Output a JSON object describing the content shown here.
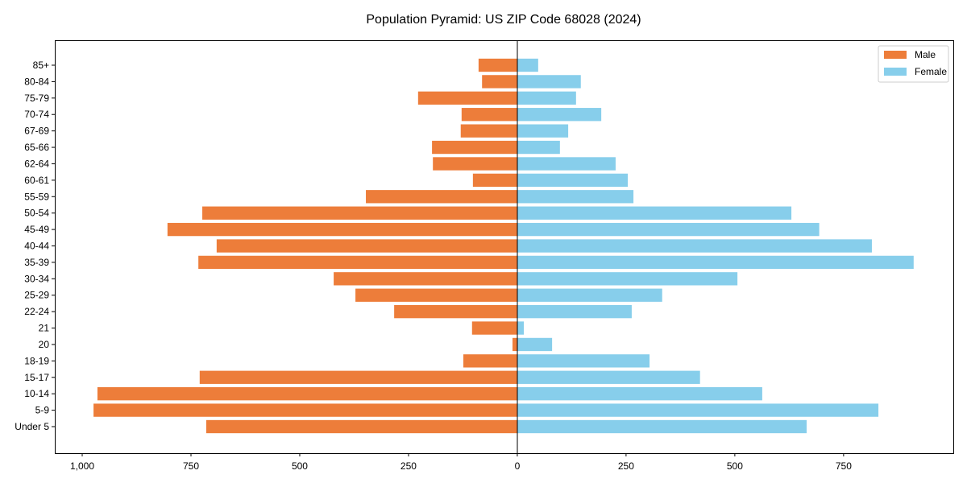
{
  "chart_data": {
    "type": "bar",
    "orientation": "horizontal",
    "title": "Population Pyramid: US ZIP Code 68028 (2024)",
    "xlabel": "",
    "ylabel": "",
    "categories": [
      "Under 5",
      "5-9",
      "10-14",
      "15-17",
      "18-19",
      "20",
      "21",
      "22-24",
      "25-29",
      "30-34",
      "35-39",
      "40-44",
      "45-49",
      "50-54",
      "55-59",
      "60-61",
      "62-64",
      "65-66",
      "67-69",
      "70-74",
      "75-79",
      "80-84",
      "85+"
    ],
    "series": [
      {
        "name": "Male",
        "color": "#ED7D3A",
        "direction": "left",
        "values": [
          715,
          974,
          965,
          730,
          124,
          11,
          104,
          283,
          372,
          422,
          733,
          691,
          804,
          724,
          348,
          102,
          194,
          196,
          130,
          128,
          228,
          81,
          89
        ]
      },
      {
        "name": "Female",
        "color": "#87CEEB",
        "direction": "right",
        "values": [
          665,
          830,
          563,
          420,
          304,
          80,
          15,
          263,
          333,
          506,
          911,
          815,
          694,
          630,
          267,
          254,
          226,
          98,
          117,
          193,
          135,
          146,
          48
        ]
      }
    ],
    "xlim": [
      -1063,
      1004
    ],
    "xticks": [
      -1000,
      -750,
      -500,
      -250,
      0,
      250,
      500,
      750
    ],
    "xtick_labels": [
      "1,000",
      "750",
      "500",
      "250",
      "0",
      "250",
      "500",
      "750"
    ],
    "grid": false,
    "legend_position": "top-right"
  }
}
